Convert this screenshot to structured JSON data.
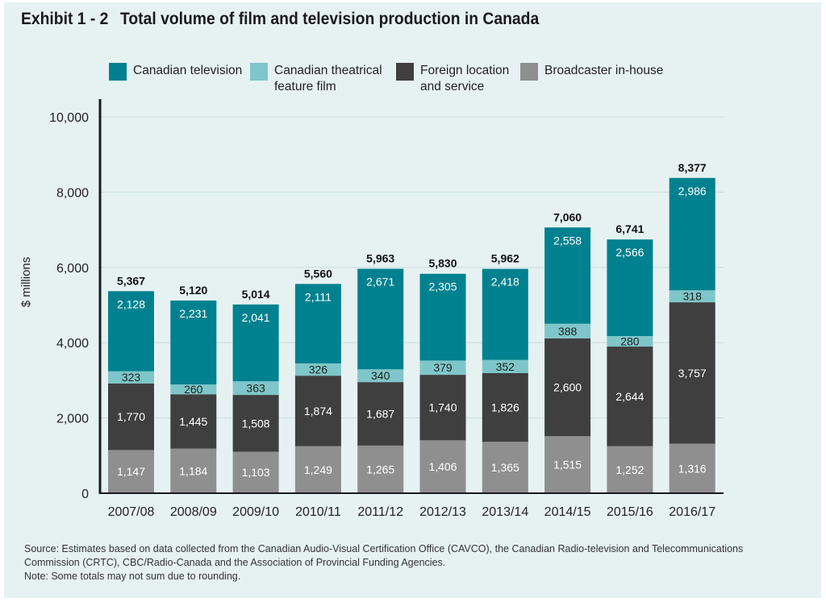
{
  "header": {
    "exhibit": "Exhibit 1 - 2",
    "title": "Total volume of film and television production in Canada"
  },
  "colors": {
    "canadian_television": "#00818f",
    "canadian_theatrical": "#7ec6c9",
    "foreign_location": "#3f3f3f",
    "broadcaster_inhouse": "#8f8f8f",
    "panel_background": "#e6f2f2"
  },
  "footer": {
    "source": "Source: Estimates based on data collected from the Canadian Audio-Visual Certification Office (CAVCO), the Canadian Radio-television and Telecommunications Commission (CRTC), CBC/Radio-Canada and the Association of Provincial Funding Agencies.",
    "note": "Note: Some totals may not sum due to rounding."
  },
  "chart_data": {
    "type": "bar",
    "stacked": true,
    "title": "Total volume of film and television production in Canada",
    "xlabel": "",
    "ylabel": "$ millions",
    "ylim": [
      0,
      10000
    ],
    "yticks": [
      "0",
      "2,000",
      "4,000",
      "6,000",
      "8,000",
      "10,000"
    ],
    "ytick_values": [
      0,
      2000,
      4000,
      6000,
      8000,
      10000
    ],
    "grid": true,
    "legend_position": "top",
    "categories": [
      "2007/08",
      "2008/09",
      "2009/10",
      "2010/11",
      "2011/12",
      "2012/13",
      "2013/14",
      "2014/15",
      "2015/16",
      "2016/17"
    ],
    "series": [
      {
        "name": "Broadcaster in-house",
        "color": "#8f8f8f",
        "values": [
          1147,
          1184,
          1103,
          1249,
          1265,
          1406,
          1365,
          1515,
          1252,
          1316
        ],
        "labels": [
          "1,147",
          "1,184",
          "1,103",
          "1,249",
          "1,265",
          "1,406",
          "1,365",
          "1,515",
          "1,252",
          "1,316"
        ]
      },
      {
        "name": "Foreign location\nand service",
        "color": "#3f3f3f",
        "values": [
          1770,
          1445,
          1508,
          1874,
          1687,
          1740,
          1826,
          2600,
          2644,
          3757
        ],
        "labels": [
          "1,770",
          "1,445",
          "1,508",
          "1,874",
          "1,687",
          "1,740",
          "1,826",
          "2,600",
          "2,644",
          "3,757"
        ]
      },
      {
        "name": "Canadian theatrical\nfeature film",
        "color": "#7ec6c9",
        "values": [
          323,
          260,
          363,
          326,
          340,
          379,
          352,
          388,
          280,
          318
        ],
        "labels": [
          "323",
          "260",
          "363",
          "326",
          "340",
          "379",
          "352",
          "388",
          "280",
          "318"
        ]
      },
      {
        "name": "Canadian television",
        "color": "#00818f",
        "values": [
          2128,
          2231,
          2041,
          2111,
          2671,
          2305,
          2418,
          2558,
          2566,
          2986
        ],
        "labels": [
          "2,128",
          "2,231",
          "2,041",
          "2,111",
          "2,671",
          "2,305",
          "2,418",
          "2,558",
          "2,566",
          "2,986"
        ]
      }
    ],
    "totals": [
      5367,
      5120,
      5014,
      5560,
      5963,
      5830,
      5962,
      7060,
      6741,
      8377
    ],
    "total_labels": [
      "5,367",
      "5,120",
      "5,014",
      "5,560",
      "5,963",
      "5,830",
      "5,962",
      "7,060",
      "6,741",
      "8,377"
    ]
  }
}
